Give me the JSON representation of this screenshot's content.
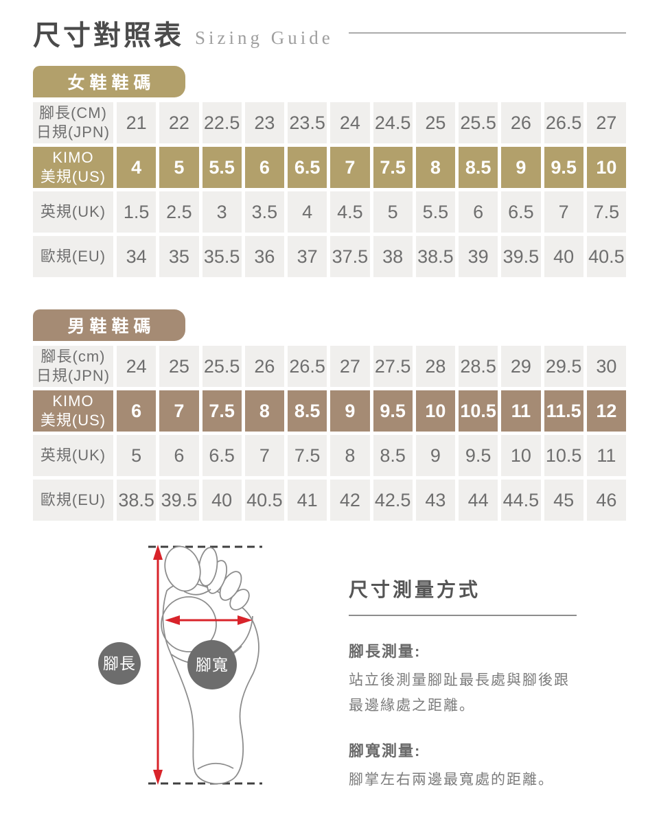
{
  "page": {
    "title": "尺寸對照表",
    "subtitle": "Sizing Guide"
  },
  "colors": {
    "women_accent": "#b2a06b",
    "men_accent": "#a58b74",
    "cell_bg": "#f0efed",
    "cell_text": "#6e6e6e",
    "arrow_red": "#d8232a",
    "label_circle_gray": "#6d6d6d"
  },
  "women_table": {
    "tab_label": "女鞋鞋碼",
    "rows": [
      {
        "accent": false,
        "label_lines": [
          "腳長(CM)",
          "日規(JPN)"
        ],
        "values": [
          "21",
          "22",
          "22.5",
          "23",
          "23.5",
          "24",
          "24.5",
          "25",
          "25.5",
          "26",
          "26.5",
          "27"
        ]
      },
      {
        "accent": true,
        "label_lines": [
          "KIMO",
          "美規(US)"
        ],
        "values": [
          "4",
          "5",
          "5.5",
          "6",
          "6.5",
          "7",
          "7.5",
          "8",
          "8.5",
          "9",
          "9.5",
          "10"
        ]
      },
      {
        "accent": false,
        "label_lines": [
          "英規(UK)"
        ],
        "values": [
          "1.5",
          "2.5",
          "3",
          "3.5",
          "4",
          "4.5",
          "5",
          "5.5",
          "6",
          "6.5",
          "7",
          "7.5"
        ]
      },
      {
        "accent": false,
        "label_lines": [
          "歐規(EU)"
        ],
        "values": [
          "34",
          "35",
          "35.5",
          "36",
          "37",
          "37.5",
          "38",
          "38.5",
          "39",
          "39.5",
          "40",
          "40.5"
        ]
      }
    ]
  },
  "men_table": {
    "tab_label": "男鞋鞋碼",
    "rows": [
      {
        "accent": false,
        "label_lines": [
          "腳長(cm)",
          "日規(JPN)"
        ],
        "values": [
          "24",
          "25",
          "25.5",
          "26",
          "26.5",
          "27",
          "27.5",
          "28",
          "28.5",
          "29",
          "29.5",
          "30"
        ]
      },
      {
        "accent": true,
        "label_lines": [
          "KIMO",
          "美規(US)"
        ],
        "values": [
          "6",
          "7",
          "7.5",
          "8",
          "8.5",
          "9",
          "9.5",
          "10",
          "10.5",
          "11",
          "11.5",
          "12"
        ]
      },
      {
        "accent": false,
        "label_lines": [
          "英規(UK)"
        ],
        "values": [
          "5",
          "6",
          "6.5",
          "7",
          "7.5",
          "8",
          "8.5",
          "9",
          "9.5",
          "10",
          "10.5",
          "11"
        ]
      },
      {
        "accent": false,
        "label_lines": [
          "歐規(EU)"
        ],
        "values": [
          "38.5",
          "39.5",
          "40",
          "40.5",
          "41",
          "42",
          "42.5",
          "43",
          "44",
          "44.5",
          "45",
          "46"
        ]
      }
    ]
  },
  "diagram": {
    "length_label": "腳長",
    "width_label": "腳寬"
  },
  "measurement": {
    "heading": "尺寸測量方式",
    "sections": [
      {
        "subtitle": "腳長測量:",
        "body": "站立後測量腳趾最長處與腳後跟\n最邊緣處之距離。"
      },
      {
        "subtitle": "腳寬測量:",
        "body": "腳掌左右兩邊最寬處的距離。"
      }
    ]
  }
}
